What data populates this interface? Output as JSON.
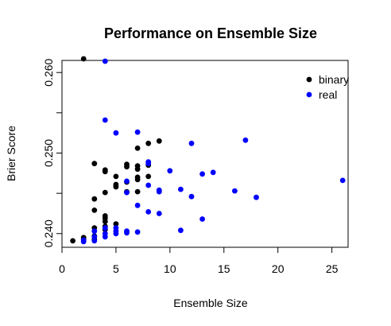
{
  "chart_data": {
    "type": "scatter",
    "title": "Performance on Ensemble Size",
    "xlabel": "Ensemble Size",
    "ylabel": "Brier Score",
    "xlim": [
      0,
      26.5
    ],
    "ylim": [
      0.2383,
      0.2615
    ],
    "xticks": [
      0,
      5,
      10,
      15,
      20,
      25
    ],
    "xtick_labels": [
      "0",
      "5",
      "10",
      "15",
      "20",
      "25"
    ],
    "yticks": [
      0.24,
      0.245,
      0.25,
      0.255,
      0.26
    ],
    "ytick_labels": [
      "0.240",
      "",
      "0.250",
      "",
      "0.260"
    ],
    "legend_position": "top-right",
    "grid": false,
    "series": [
      {
        "name": "binary",
        "color": "#000000",
        "points": [
          [
            1,
            0.2391
          ],
          [
            2,
            0.2617
          ],
          [
            2,
            0.2393
          ],
          [
            2,
            0.2395
          ],
          [
            3,
            0.2393
          ],
          [
            3,
            0.2397
          ],
          [
            3,
            0.2407
          ],
          [
            3,
            0.2429
          ],
          [
            3,
            0.2443
          ],
          [
            3,
            0.2487
          ],
          [
            4,
            0.2405
          ],
          [
            4,
            0.2409
          ],
          [
            4,
            0.2415
          ],
          [
            4,
            0.2419
          ],
          [
            4,
            0.2422
          ],
          [
            4,
            0.2451
          ],
          [
            4,
            0.2477
          ],
          [
            4,
            0.2479
          ],
          [
            5,
            0.2412
          ],
          [
            5,
            0.2458
          ],
          [
            5,
            0.2459
          ],
          [
            5,
            0.2461
          ],
          [
            5,
            0.2471
          ],
          [
            6,
            0.2452
          ],
          [
            6,
            0.2464
          ],
          [
            6,
            0.2483
          ],
          [
            6,
            0.2486
          ],
          [
            7,
            0.2452
          ],
          [
            7,
            0.2467
          ],
          [
            7,
            0.247
          ],
          [
            7,
            0.248
          ],
          [
            7,
            0.2484
          ],
          [
            7,
            0.2506
          ],
          [
            8,
            0.2471
          ],
          [
            8,
            0.2485
          ],
          [
            8,
            0.2512
          ],
          [
            9,
            0.2515
          ]
        ]
      },
      {
        "name": "real",
        "color": "#0000ff",
        "points": [
          [
            2,
            0.239
          ],
          [
            2,
            0.2392
          ],
          [
            3,
            0.2391
          ],
          [
            3,
            0.2396
          ],
          [
            3,
            0.2403
          ],
          [
            4,
            0.2396
          ],
          [
            4,
            0.24
          ],
          [
            4,
            0.2407
          ],
          [
            4,
            0.2614
          ],
          [
            4,
            0.2541
          ],
          [
            5,
            0.24
          ],
          [
            5,
            0.2403
          ],
          [
            5,
            0.2407
          ],
          [
            5,
            0.2525
          ],
          [
            6,
            0.2401
          ],
          [
            6,
            0.2403
          ],
          [
            6,
            0.2451
          ],
          [
            6,
            0.2465
          ],
          [
            7,
            0.2402
          ],
          [
            7,
            0.2435
          ],
          [
            7,
            0.2526
          ],
          [
            8,
            0.2427
          ],
          [
            8,
            0.246
          ],
          [
            8,
            0.2487
          ],
          [
            8,
            0.2489
          ],
          [
            9,
            0.2425
          ],
          [
            9,
            0.2452
          ],
          [
            9,
            0.2454
          ],
          [
            10,
            0.2478
          ],
          [
            11,
            0.2404
          ],
          [
            11,
            0.2455
          ],
          [
            12,
            0.2446
          ],
          [
            12,
            0.2512
          ],
          [
            13,
            0.2418
          ],
          [
            13,
            0.2474
          ],
          [
            14,
            0.2476
          ],
          [
            16,
            0.2453
          ],
          [
            17,
            0.2516
          ],
          [
            18,
            0.2445
          ],
          [
            26,
            0.2466
          ]
        ]
      }
    ]
  }
}
